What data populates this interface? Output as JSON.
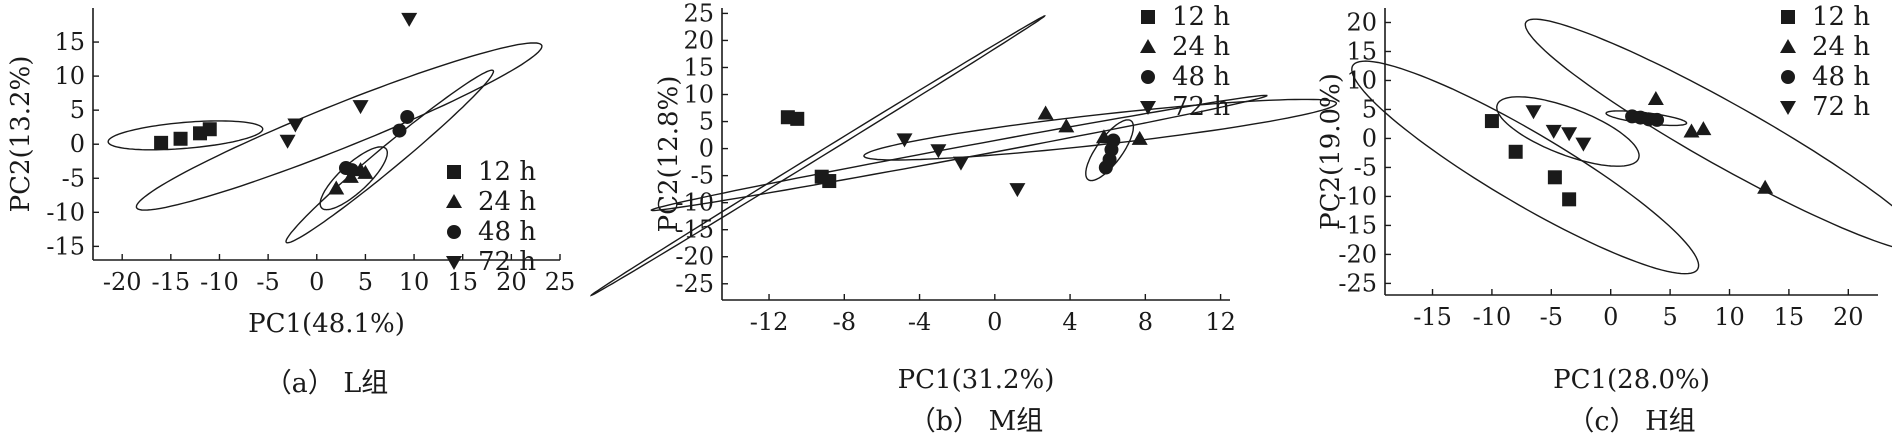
{
  "chart_data": [
    {
      "type": "scatter",
      "caption": "（a） L组",
      "xlabel": "PC1(48.1%)",
      "ylabel": "PC2(13.2%)",
      "xlim": [
        -23,
        25
      ],
      "ylim": [
        -17,
        20
      ],
      "xticks": [
        -20,
        -15,
        -10,
        -5,
        0,
        5,
        10,
        15,
        20,
        25
      ],
      "yticks": [
        -15,
        -10,
        -5,
        0,
        5,
        10,
        15
      ],
      "legend_position": "center-right",
      "series": [
        {
          "name": "12 h",
          "marker": "square",
          "points": [
            [
              -16,
              0.2
            ],
            [
              -14,
              0.8
            ],
            [
              -12,
              1.6
            ],
            [
              -11,
              2.2
            ]
          ]
        },
        {
          "name": "24 h",
          "marker": "triangle-up",
          "points": [
            [
              2,
              -6.5
            ],
            [
              3.5,
              -4.8
            ],
            [
              4.5,
              -3.8
            ],
            [
              5,
              -4.2
            ]
          ]
        },
        {
          "name": "48 h",
          "marker": "circle",
          "points": [
            [
              3,
              -3.5
            ],
            [
              3.6,
              -3.8
            ],
            [
              8.5,
              2
            ],
            [
              9.3,
              4
            ]
          ]
        },
        {
          "name": "72 h",
          "marker": "triangle-down",
          "points": [
            [
              -3,
              0.5
            ],
            [
              -2.2,
              2.9
            ],
            [
              4.5,
              5.6
            ],
            [
              9.5,
              18.4
            ]
          ]
        }
      ],
      "ellipses": [
        {
          "cx": -13.5,
          "cy": 1.3,
          "rx": 8.0,
          "ry": 1.9,
          "angle": 7
        },
        {
          "cx": 2.3,
          "cy": 2.6,
          "rx": 24.0,
          "ry": 3.0,
          "angle": 30
        },
        {
          "cx": 7.5,
          "cy": -1.8,
          "rx": 16.5,
          "ry": 1.4,
          "angle": 50
        },
        {
          "cx": 3.8,
          "cy": -5.0,
          "rx": 5.5,
          "ry": 1.7,
          "angle": 55
        }
      ]
    },
    {
      "type": "scatter",
      "caption": "（b） M组",
      "xlabel": "PC1(31.2%)",
      "ylabel": "PC2(12.8%)",
      "xlim": [
        -14.5,
        12.5
      ],
      "ylim": [
        -28,
        26
      ],
      "xticks": [
        -12,
        -8,
        -4,
        0,
        4,
        8,
        12
      ],
      "yticks": [
        -25,
        -20,
        -15,
        -10,
        -5,
        0,
        5,
        10,
        15,
        20,
        25
      ],
      "legend_position": "top-right",
      "series": [
        {
          "name": "12 h",
          "marker": "square",
          "points": [
            [
              -11,
              5.8
            ],
            [
              -10.5,
              5.5
            ],
            [
              -9.2,
              -5.2
            ],
            [
              -8.8,
              -6
            ]
          ]
        },
        {
          "name": "24 h",
          "marker": "triangle-up",
          "points": [
            [
              2.7,
              6.5
            ],
            [
              3.8,
              4.1
            ],
            [
              5.8,
              2.1
            ],
            [
              7.7,
              1.8
            ]
          ]
        },
        {
          "name": "48 h",
          "marker": "circle",
          "points": [
            [
              5.9,
              -3.5
            ],
            [
              6.1,
              -2
            ],
            [
              6.2,
              -0.2
            ],
            [
              6.3,
              1.5
            ]
          ]
        },
        {
          "name": "72 h",
          "marker": "triangle-down",
          "points": [
            [
              -4.8,
              1.7
            ],
            [
              -3,
              -0.3
            ],
            [
              -1.8,
              -2.6
            ],
            [
              1.2,
              -7.5
            ]
          ]
        }
      ],
      "ellipses": [
        {
          "cx": -9.4,
          "cy": -1.3,
          "rx": 28.5,
          "ry": 0.25,
          "angle": 65
        },
        {
          "cx": -1.9,
          "cy": -0.8,
          "rx": 19.5,
          "ry": 0.9,
          "angle": 33
        },
        {
          "cx": 5.6,
          "cy": 3.5,
          "rx": 13.5,
          "ry": 2.6,
          "angle": 22
        },
        {
          "cx": 6.1,
          "cy": -0.3,
          "rx": 5.7,
          "ry": 0.8,
          "angle": 80
        }
      ]
    },
    {
      "type": "scatter",
      "caption": "（c） H组",
      "xlabel": "PC1(28.0%)",
      "ylabel": "PC2(19.0%)",
      "xlim": [
        -19,
        22.5
      ],
      "ylim": [
        -27,
        22.5
      ],
      "xticks": [
        -15,
        -10,
        -5,
        0,
        5,
        10,
        15,
        20
      ],
      "yticks": [
        -25,
        -20,
        -15,
        -10,
        -5,
        0,
        5,
        10,
        15,
        20
      ],
      "legend_position": "top-right",
      "series": [
        {
          "name": "12 h",
          "marker": "square",
          "points": [
            [
              -10,
              3
            ],
            [
              -8,
              -2.3
            ],
            [
              -4.7,
              -6.7
            ],
            [
              -3.5,
              -10.5
            ]
          ]
        },
        {
          "name": "24 h",
          "marker": "triangle-up",
          "points": [
            [
              3.8,
              6.8
            ],
            [
              6.8,
              1.2
            ],
            [
              7.8,
              1.6
            ],
            [
              13,
              -8.5
            ]
          ]
        },
        {
          "name": "48 h",
          "marker": "circle",
          "points": [
            [
              1.8,
              3.8
            ],
            [
              2.5,
              3.6
            ],
            [
              3.2,
              3.3
            ],
            [
              3.9,
              3.2
            ]
          ]
        },
        {
          "name": "72 h",
          "marker": "triangle-down",
          "points": [
            [
              -6.5,
              4.7
            ],
            [
              -4.8,
              1.3
            ],
            [
              -3.5,
              0.9
            ],
            [
              -2.3,
              -0.9
            ]
          ]
        }
      ],
      "ellipses": [
        {
          "cx": -7.2,
          "cy": -5.0,
          "rx": 23.0,
          "ry": 4.5,
          "angle": -52
        },
        {
          "cx": -3.6,
          "cy": 1.2,
          "rx": 7.8,
          "ry": 3.3,
          "angle": -45
        },
        {
          "cx": 3.0,
          "cy": 3.5,
          "rx": 3.5,
          "ry": 0.9,
          "angle": -15
        },
        {
          "cx": 9.8,
          "cy": 0.5,
          "rx": 26.0,
          "ry": 4.0,
          "angle": -50
        }
      ]
    }
  ]
}
